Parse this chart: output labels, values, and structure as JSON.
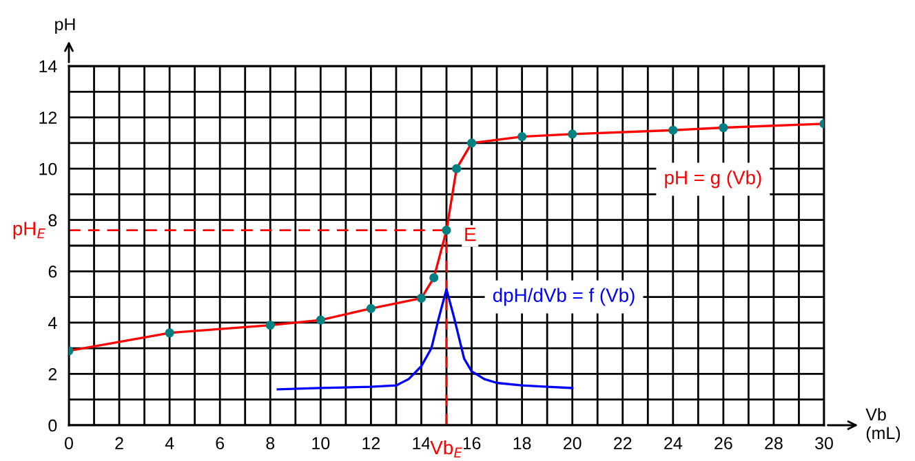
{
  "chart_data": {
    "type": "line",
    "xlabel": "Vb\n(mL)",
    "ylabel": "pH",
    "xlim": [
      0,
      30
    ],
    "ylim": [
      0,
      14
    ],
    "xticks": [
      0,
      {
        "value": 1,
        "label": null
      },
      2,
      {
        "value": 3,
        "label": null
      },
      4,
      {
        "value": 5,
        "label": null
      },
      6,
      {
        "value": 7,
        "label": null
      },
      8,
      {
        "value": 9,
        "label": null
      },
      10,
      {
        "value": 11,
        "label": null
      },
      12,
      {
        "value": 13,
        "label": null
      },
      14,
      {
        "value": 15,
        "label": null
      },
      16,
      {
        "value": 17,
        "label": null
      },
      18,
      {
        "value": 19,
        "label": null
      },
      20,
      {
        "value": 21,
        "label": null
      },
      22,
      {
        "value": 23,
        "label": null
      },
      24,
      {
        "value": 25,
        "label": null
      },
      26,
      {
        "value": 27,
        "label": null
      },
      28,
      {
        "value": 29,
        "label": null
      },
      30
    ],
    "yticks": [
      0,
      {
        "value": 1,
        "label": null
      },
      2,
      {
        "value": 3,
        "label": null
      },
      4,
      {
        "value": 5,
        "label": null
      },
      6,
      {
        "value": 7,
        "label": null
      },
      8,
      {
        "value": 9,
        "label": null
      },
      10,
      {
        "value": 11,
        "label": null
      },
      12,
      {
        "value": 13,
        "label": null
      },
      14
    ],
    "grid": true,
    "series": [
      {
        "name": "pH = g (Vb)",
        "color": "#ff0000",
        "x": [
          0,
          4,
          8,
          10,
          12,
          14,
          14.5,
          15,
          15.4,
          16,
          18,
          20,
          24,
          26,
          30
        ],
        "values": [
          2.9,
          3.6,
          3.9,
          4.1,
          4.55,
          4.95,
          5.75,
          7.6,
          10,
          11,
          11.25,
          11.35,
          11.5,
          11.6,
          11.75
        ]
      },
      {
        "type": "scatter",
        "color": "#008080",
        "marker": "circle",
        "x": [
          0,
          4,
          8,
          10,
          12,
          14,
          14.5,
          15,
          15.4,
          16,
          18,
          20,
          24,
          26,
          30
        ],
        "values": [
          2.9,
          3.6,
          3.9,
          4.1,
          4.55,
          4.95,
          5.75,
          7.6,
          10,
          11,
          11.25,
          11.35,
          11.5,
          11.6,
          11.75
        ]
      },
      {
        "name": "dpH/dVb = f (Vb)",
        "color": "#0000ff",
        "x": [
          8.3,
          10,
          12,
          13,
          13.5,
          14,
          14.4,
          14.7,
          15,
          15.3,
          15.7,
          16,
          16.5,
          17,
          18,
          19,
          20
        ],
        "values": [
          1.4,
          1.45,
          1.5,
          1.55,
          1.8,
          2.3,
          3.0,
          4.2,
          5.3,
          4.2,
          2.6,
          2.1,
          1.8,
          1.65,
          1.55,
          1.5,
          1.45
        ]
      }
    ],
    "ref_lines": [
      {
        "axis": "y",
        "value": 7.6,
        "label": "pH$_{E}$",
        "color": "#ff0000",
        "line_style": "dashed"
      },
      {
        "axis": "x",
        "value": 15,
        "label": "Vb$_{E}$",
        "color": "#ff0000",
        "line_style": "dashed"
      }
    ],
    "annotations": [
      {
        "text": "E",
        "x": 15,
        "y": 7.6
      }
    ]
  }
}
